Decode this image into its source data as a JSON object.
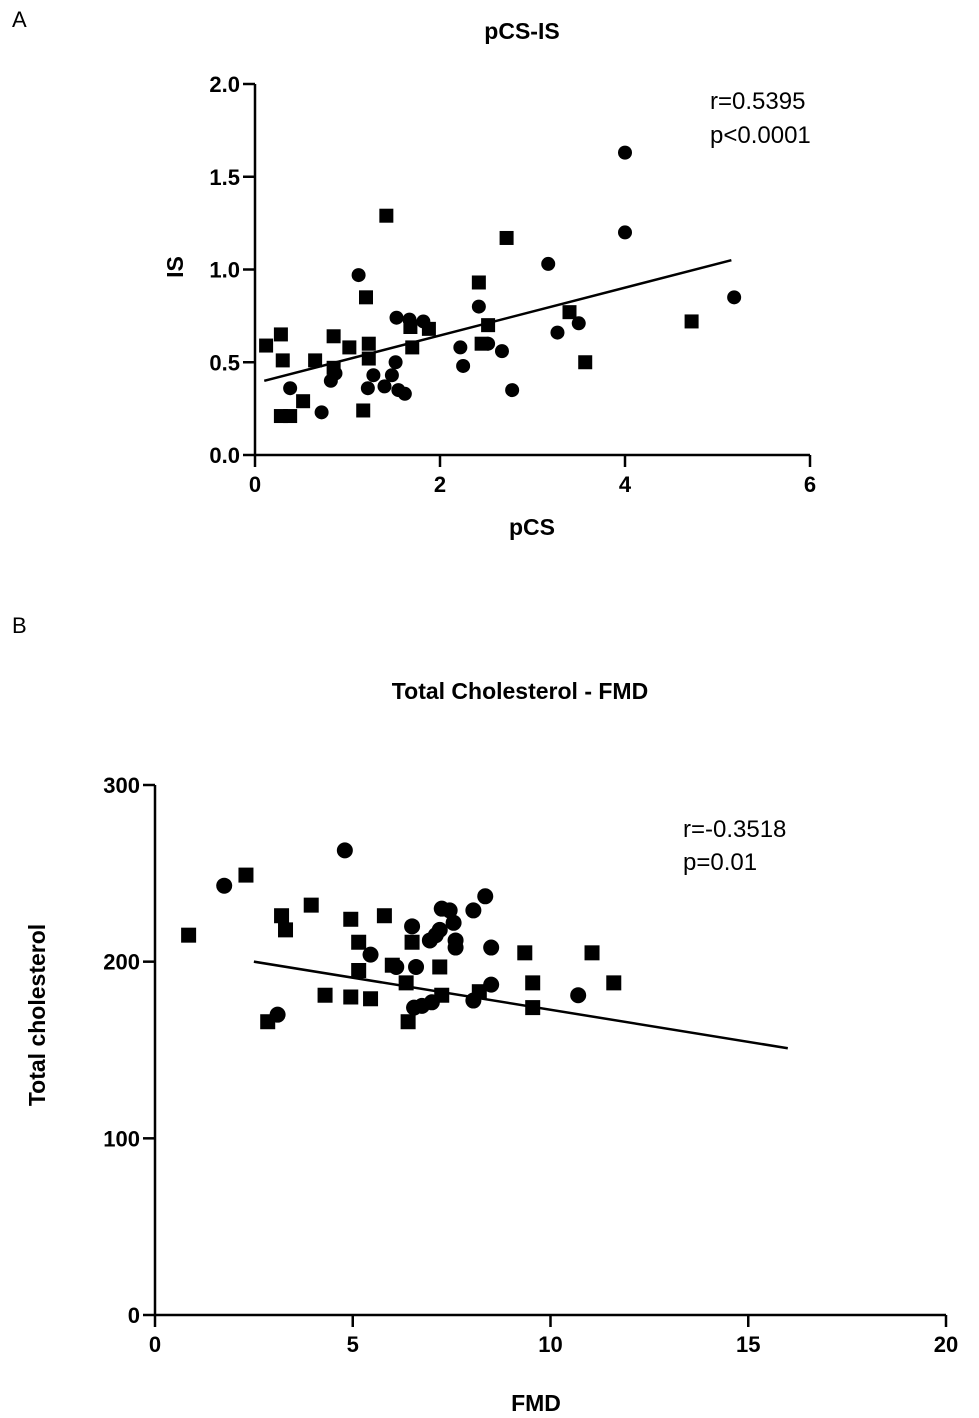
{
  "panels": [
    {
      "letter": "A"
    },
    {
      "letter": "B"
    }
  ],
  "chart_data": [
    {
      "type": "scatter",
      "title": "pCS-IS",
      "xlabel": "pCS",
      "ylabel": "IS",
      "xlim": [
        0,
        6
      ],
      "ylim": [
        0,
        2.0
      ],
      "xticks": [
        0,
        2,
        4,
        6
      ],
      "xtick_labels": [
        "0",
        "2",
        "4",
        "6"
      ],
      "yticks": [
        0,
        0.5,
        1.0,
        1.5,
        2.0
      ],
      "ytick_labels": [
        "0.0",
        "0.5",
        "1.0",
        "1.5",
        "2.0"
      ],
      "stats": [
        "r=0.5395",
        "p<0.0001"
      ],
      "regression": {
        "x": [
          0.1,
          5.15
        ],
        "y": [
          0.4,
          1.05
        ]
      },
      "series": [
        {
          "marker": "square",
          "points": [
            [
              0.12,
              0.59
            ],
            [
              0.28,
              0.65
            ],
            [
              0.3,
              0.51
            ],
            [
              0.28,
              0.21
            ],
            [
              0.38,
              0.21
            ],
            [
              0.52,
              0.29
            ],
            [
              0.65,
              0.51
            ],
            [
              0.85,
              0.64
            ],
            [
              0.85,
              0.47
            ],
            [
              1.02,
              0.58
            ],
            [
              1.17,
              0.24
            ],
            [
              1.2,
              0.85
            ],
            [
              1.23,
              0.6
            ],
            [
              1.23,
              0.52
            ],
            [
              1.42,
              1.29
            ],
            [
              1.68,
              0.69
            ],
            [
              1.7,
              0.58
            ],
            [
              1.88,
              0.68
            ],
            [
              2.42,
              0.93
            ],
            [
              2.45,
              0.6
            ],
            [
              2.52,
              0.7
            ],
            [
              2.72,
              1.17
            ],
            [
              3.4,
              0.77
            ],
            [
              3.57,
              0.5
            ],
            [
              4.72,
              0.72
            ]
          ]
        },
        {
          "marker": "circle",
          "points": [
            [
              0.38,
              0.36
            ],
            [
              0.72,
              0.23
            ],
            [
              0.82,
              0.4
            ],
            [
              0.87,
              0.44
            ],
            [
              1.12,
              0.97
            ],
            [
              1.22,
              0.36
            ],
            [
              1.28,
              0.43
            ],
            [
              1.4,
              0.37
            ],
            [
              1.48,
              0.43
            ],
            [
              1.52,
              0.5
            ],
            [
              1.53,
              0.74
            ],
            [
              1.55,
              0.35
            ],
            [
              1.62,
              0.33
            ],
            [
              1.67,
              0.73
            ],
            [
              1.82,
              0.72
            ],
            [
              2.22,
              0.58
            ],
            [
              2.25,
              0.48
            ],
            [
              2.42,
              0.8
            ],
            [
              2.52,
              0.6
            ],
            [
              2.67,
              0.56
            ],
            [
              2.78,
              0.35
            ],
            [
              3.17,
              1.03
            ],
            [
              3.27,
              0.66
            ],
            [
              3.5,
              0.71
            ],
            [
              4.0,
              1.63
            ],
            [
              4.0,
              1.2
            ],
            [
              5.18,
              0.85
            ]
          ]
        }
      ]
    },
    {
      "type": "scatter",
      "title": "Total Cholesterol - FMD",
      "xlabel": "FMD",
      "ylabel": "Total cholesterol",
      "xlim": [
        0,
        20
      ],
      "ylim": [
        0,
        300
      ],
      "xticks": [
        0,
        5,
        10,
        15,
        20
      ],
      "xtick_labels": [
        "0",
        "5",
        "10",
        "15",
        "20"
      ],
      "yticks": [
        0,
        100,
        200,
        300
      ],
      "ytick_labels": [
        "0",
        "100",
        "200",
        "300"
      ],
      "stats": [
        "r=-0.3518",
        "p=0.01"
      ],
      "regression": {
        "x": [
          2.5,
          16.0
        ],
        "y": [
          200,
          151
        ]
      },
      "series": [
        {
          "marker": "square",
          "points": [
            [
              0.85,
              215
            ],
            [
              2.3,
              249
            ],
            [
              2.85,
              166
            ],
            [
              3.2,
              226
            ],
            [
              3.3,
              218
            ],
            [
              3.95,
              232
            ],
            [
              4.3,
              181
            ],
            [
              4.95,
              224
            ],
            [
              4.95,
              180
            ],
            [
              5.15,
              211
            ],
            [
              5.15,
              195
            ],
            [
              5.45,
              179
            ],
            [
              5.8,
              226
            ],
            [
              6.0,
              198
            ],
            [
              6.35,
              188
            ],
            [
              6.4,
              166
            ],
            [
              6.5,
              211
            ],
            [
              7.2,
              197
            ],
            [
              7.25,
              181
            ],
            [
              8.2,
              183
            ],
            [
              9.35,
              205
            ],
            [
              9.55,
              188
            ],
            [
              9.55,
              174
            ],
            [
              11.05,
              205
            ],
            [
              11.6,
              188
            ]
          ]
        },
        {
          "marker": "circle",
          "points": [
            [
              1.75,
              243
            ],
            [
              3.1,
              170
            ],
            [
              4.8,
              263
            ],
            [
              5.45,
              204
            ],
            [
              6.1,
              197
            ],
            [
              6.5,
              220
            ],
            [
              6.55,
              174
            ],
            [
              6.6,
              197
            ],
            [
              6.75,
              175
            ],
            [
              6.95,
              212
            ],
            [
              7.0,
              177
            ],
            [
              7.1,
              215
            ],
            [
              7.2,
              218
            ],
            [
              7.25,
              230
            ],
            [
              7.45,
              229
            ],
            [
              7.55,
              222
            ],
            [
              7.6,
              212
            ],
            [
              7.6,
              208
            ],
            [
              8.05,
              178
            ],
            [
              8.05,
              229
            ],
            [
              8.35,
              237
            ],
            [
              8.5,
              208
            ],
            [
              8.5,
              187
            ],
            [
              10.7,
              181
            ]
          ]
        }
      ]
    }
  ]
}
